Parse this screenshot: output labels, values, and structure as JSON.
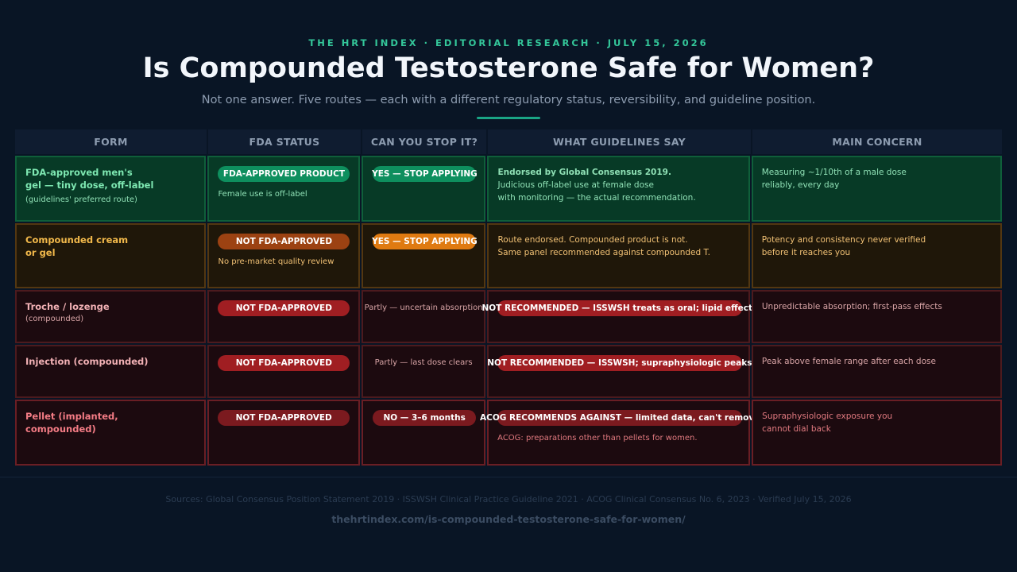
{
  "header": {
    "kicker": "THE HRT INDEX · EDITORIAL RESEARCH · JULY 15, 2026",
    "title": "Is Compounded Testosterone Safe for Women?",
    "subtitle": "Not one answer. Five routes — each with a different regulatory status, reversibility, and guideline position."
  },
  "columns": [
    "FORM",
    "FDA STATUS",
    "CAN YOU STOP IT?",
    "WHAT GUIDELINES SAY",
    "MAIN CONCERN"
  ],
  "rows": [
    {
      "form_line1": "FDA-approved men's",
      "form_line2": "gel — tiny dose, off-label",
      "form_note": "(guidelines' preferred route)",
      "fda_pill": "FDA-APPROVED PRODUCT",
      "fda_note": "Female use is off-label",
      "stop_pill": "YES — STOP APPLYING",
      "guide_bold": "Endorsed by Global Consensus 2019.",
      "guide_line1": "Judicious off-label use at female dose",
      "guide_line2": "with monitoring — the actual recommendation.",
      "concern_line1": "Measuring ~1/10th of a male dose",
      "concern_line2": "reliably, every day"
    },
    {
      "form_line1": "Compounded cream",
      "form_line2": "or gel",
      "fda_pill": "NOT FDA-APPROVED",
      "fda_note": "No pre-market quality review",
      "stop_pill": "YES — STOP APPLYING",
      "guide_line1": "Route endorsed. Compounded product is not.",
      "guide_line2": "Same panel recommended against compounded T.",
      "concern_line1": "Potency and consistency never verified",
      "concern_line2": "before it reaches you"
    },
    {
      "form_line1": "Troche / lozenge",
      "form_note": "(compounded)",
      "fda_pill": "NOT FDA-APPROVED",
      "stop_text": "Partly — uncertain absorption",
      "guide_pill": "NOT RECOMMENDED — ISSWSH treats as oral; lipid effects",
      "concern_line1": "Unpredictable absorption; first-pass effects"
    },
    {
      "form_line1": "Injection (compounded)",
      "fda_pill": "NOT FDA-APPROVED",
      "stop_text": "Partly — last dose clears",
      "guide_pill": "NOT RECOMMENDED — ISSWSH; supraphysiologic peaks",
      "concern_line1": "Peak above female range after each dose"
    },
    {
      "form_line1": "Pellet (implanted,",
      "form_line2": "compounded)",
      "fda_pill": "NOT FDA-APPROVED",
      "stop_pill": "NO — 3–6 months",
      "guide_pill": "ACOG RECOMMENDS AGAINST — limited data, can't remove",
      "guide_note": "ACOG: preparations other than pellets for women.",
      "concern_line1": "Supraphysiologic exposure you",
      "concern_line2": "cannot dial back"
    }
  ],
  "footer": {
    "sources": "Sources: Global Consensus Position Statement 2019 · ISSWSH Clinical Practice Guideline 2021 · ACOG Clinical Consensus No. 6, 2023 · Verified July 15, 2026",
    "url": "thehrtindex.com/is-compounded-testosterone-safe-for-women/"
  },
  "colors": {
    "background": "#091525",
    "accent": "#1aa585",
    "approved": "#0e8f5e",
    "caution": "#df7a11",
    "danger": "#a01e22"
  }
}
